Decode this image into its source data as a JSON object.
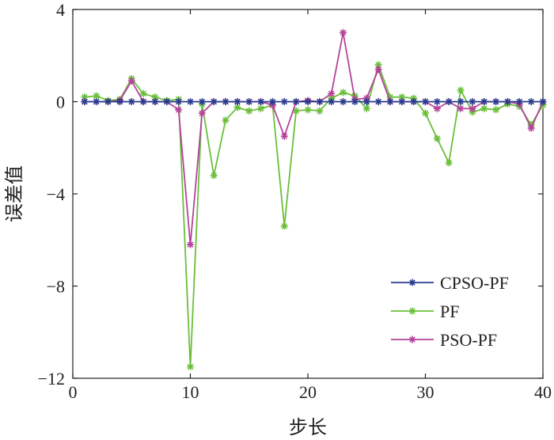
{
  "chart_data": {
    "type": "line",
    "xlabel": "步长",
    "ylabel": "误差值",
    "xlim": [
      0,
      40
    ],
    "ylim": [
      -12,
      4
    ],
    "xticks": [
      0,
      10,
      20,
      30,
      40
    ],
    "yticks": [
      4,
      0,
      -4,
      -8,
      -12
    ],
    "xtick_labels": [
      "0",
      "10",
      "20",
      "30",
      "40"
    ],
    "ytick_labels": [
      "4",
      "0",
      "−4",
      "−8",
      "−12"
    ],
    "grid": false,
    "legend_position": "bottom-right",
    "x": [
      1,
      2,
      3,
      4,
      5,
      6,
      7,
      8,
      9,
      10,
      11,
      12,
      13,
      14,
      15,
      16,
      17,
      18,
      19,
      20,
      21,
      22,
      23,
      24,
      25,
      26,
      27,
      28,
      29,
      30,
      31,
      32,
      33,
      34,
      35,
      36,
      37,
      38,
      39,
      40
    ],
    "series": [
      {
        "name": "CPSO-PF",
        "color": "#2a3b8f",
        "values": [
          0,
          0,
          0,
          0,
          0,
          0,
          0,
          0,
          0,
          0,
          0,
          0,
          0,
          0,
          0,
          0,
          0,
          0,
          0,
          0,
          0,
          0,
          0,
          0,
          0,
          0,
          0,
          0,
          0,
          0,
          0,
          0,
          0,
          0,
          0,
          0,
          0,
          0,
          0,
          0
        ]
      },
      {
        "name": "PF",
        "color": "#6abf3a",
        "values": [
          0.2,
          0.25,
          0.05,
          0.1,
          1.0,
          0.35,
          0.2,
          0.05,
          0.1,
          -11.5,
          -0.1,
          -3.2,
          -0.8,
          -0.25,
          -0.4,
          -0.3,
          -0.15,
          -5.4,
          -0.4,
          -0.35,
          -0.4,
          0.15,
          0.4,
          0.25,
          -0.3,
          1.6,
          0.2,
          0.2,
          0.15,
          -0.5,
          -1.6,
          -2.65,
          0.5,
          -0.45,
          -0.3,
          -0.35,
          -0.1,
          -0.2,
          -1.0,
          -0.15
        ]
      },
      {
        "name": "PSO-PF",
        "color": "#b5439a",
        "values": [
          0,
          0,
          0,
          0.05,
          0.9,
          0,
          0,
          0,
          -0.35,
          -6.2,
          -0.5,
          0,
          0,
          0,
          0,
          0,
          -0.15,
          -1.5,
          0,
          0.05,
          0,
          0.35,
          3.0,
          0.1,
          0.15,
          1.4,
          0,
          0,
          0,
          0,
          -0.3,
          0,
          -0.3,
          -0.3,
          0,
          0,
          0,
          -0.1,
          -1.15,
          0
        ]
      }
    ]
  }
}
